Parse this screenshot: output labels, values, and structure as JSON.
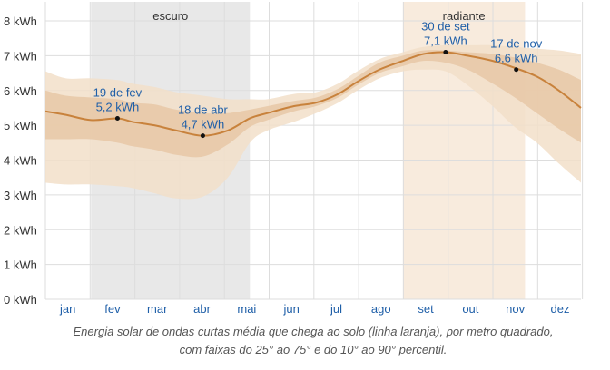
{
  "chart_data": {
    "type": "area",
    "y_unit": "kWh",
    "y_ticks": [
      "0 kWh",
      "1 kWh",
      "2 kWh",
      "3 kWh",
      "4 kWh",
      "5 kWh",
      "6 kWh",
      "7 kWh",
      "8 kWh"
    ],
    "ylim": [
      0,
      8.6
    ],
    "months": [
      "jan",
      "fev",
      "mar",
      "abr",
      "mai",
      "jun",
      "jul",
      "ago",
      "set",
      "out",
      "nov",
      "dez"
    ],
    "shaded_periods": [
      {
        "label": "escuro",
        "start_day": 32,
        "end_day": 140,
        "color": "#e8e8e8"
      },
      {
        "label": "radiante",
        "start_day": 244,
        "end_day": 327,
        "color": "#f8ebdd"
      }
    ],
    "series": {
      "days": [
        1,
        15,
        32,
        50,
        60,
        75,
        90,
        108,
        125,
        140,
        152,
        170,
        185,
        200,
        213,
        228,
        244,
        258,
        273,
        288,
        305,
        320,
        335,
        350,
        365
      ],
      "median": [
        5.4,
        5.3,
        5.15,
        5.2,
        5.1,
        5.0,
        4.85,
        4.7,
        4.85,
        5.2,
        5.35,
        5.55,
        5.65,
        5.9,
        6.25,
        6.6,
        6.85,
        7.05,
        7.1,
        7.0,
        6.85,
        6.65,
        6.4,
        6.0,
        5.5
      ],
      "p25": [
        4.6,
        4.6,
        4.6,
        4.5,
        4.4,
        4.3,
        4.15,
        4.1,
        4.45,
        4.95,
        5.15,
        5.4,
        5.55,
        5.8,
        6.15,
        6.5,
        6.7,
        6.85,
        6.8,
        6.6,
        6.2,
        5.8,
        5.35,
        4.9,
        4.5
      ],
      "p75": [
        6.0,
        5.85,
        5.8,
        5.75,
        5.65,
        5.6,
        5.45,
        5.35,
        5.35,
        5.45,
        5.55,
        5.7,
        5.8,
        6.05,
        6.4,
        6.8,
        7.0,
        7.15,
        7.15,
        7.1,
        7.05,
        6.95,
        6.8,
        6.6,
        6.3
      ],
      "p10": [
        3.35,
        3.3,
        3.3,
        3.25,
        3.2,
        3.05,
        2.9,
        2.95,
        3.5,
        4.5,
        4.85,
        5.1,
        5.35,
        5.65,
        6.0,
        6.35,
        6.55,
        6.6,
        6.55,
        6.15,
        5.55,
        4.95,
        4.5,
        3.9,
        3.35
      ],
      "p90": [
        6.55,
        6.35,
        6.35,
        6.3,
        6.2,
        6.1,
        5.95,
        5.85,
        5.75,
        5.75,
        5.75,
        5.9,
        5.95,
        6.2,
        6.55,
        6.9,
        7.1,
        7.25,
        7.3,
        7.3,
        7.3,
        7.25,
        7.2,
        7.15,
        7.05
      ]
    },
    "colors": {
      "median_line": "#c8823c",
      "band_25_75": "#e8c9a8",
      "band_10_90": "#f2dfc9",
      "grid": "#dddddd",
      "annotation_text": "#1f5fa8"
    },
    "annotations": [
      {
        "day": 50,
        "value": 5.2,
        "date": "19 de fev",
        "text": "5,2 kWh"
      },
      {
        "day": 108,
        "value": 4.7,
        "date": "18 de abr",
        "text": "4,7 kWh"
      },
      {
        "day": 273,
        "value": 7.1,
        "date": "30 de set",
        "text": "7,1 kWh"
      },
      {
        "day": 321,
        "value": 6.6,
        "date": "17 de nov",
        "text": "6,6 kWh"
      }
    ]
  },
  "caption_line1": "Energia solar de ondas curtas média que chega ao solo (linha laranja), por metro quadrado,",
  "caption_line2": "com faixas do 25° ao 75° e do 10° ao 90° percentil."
}
